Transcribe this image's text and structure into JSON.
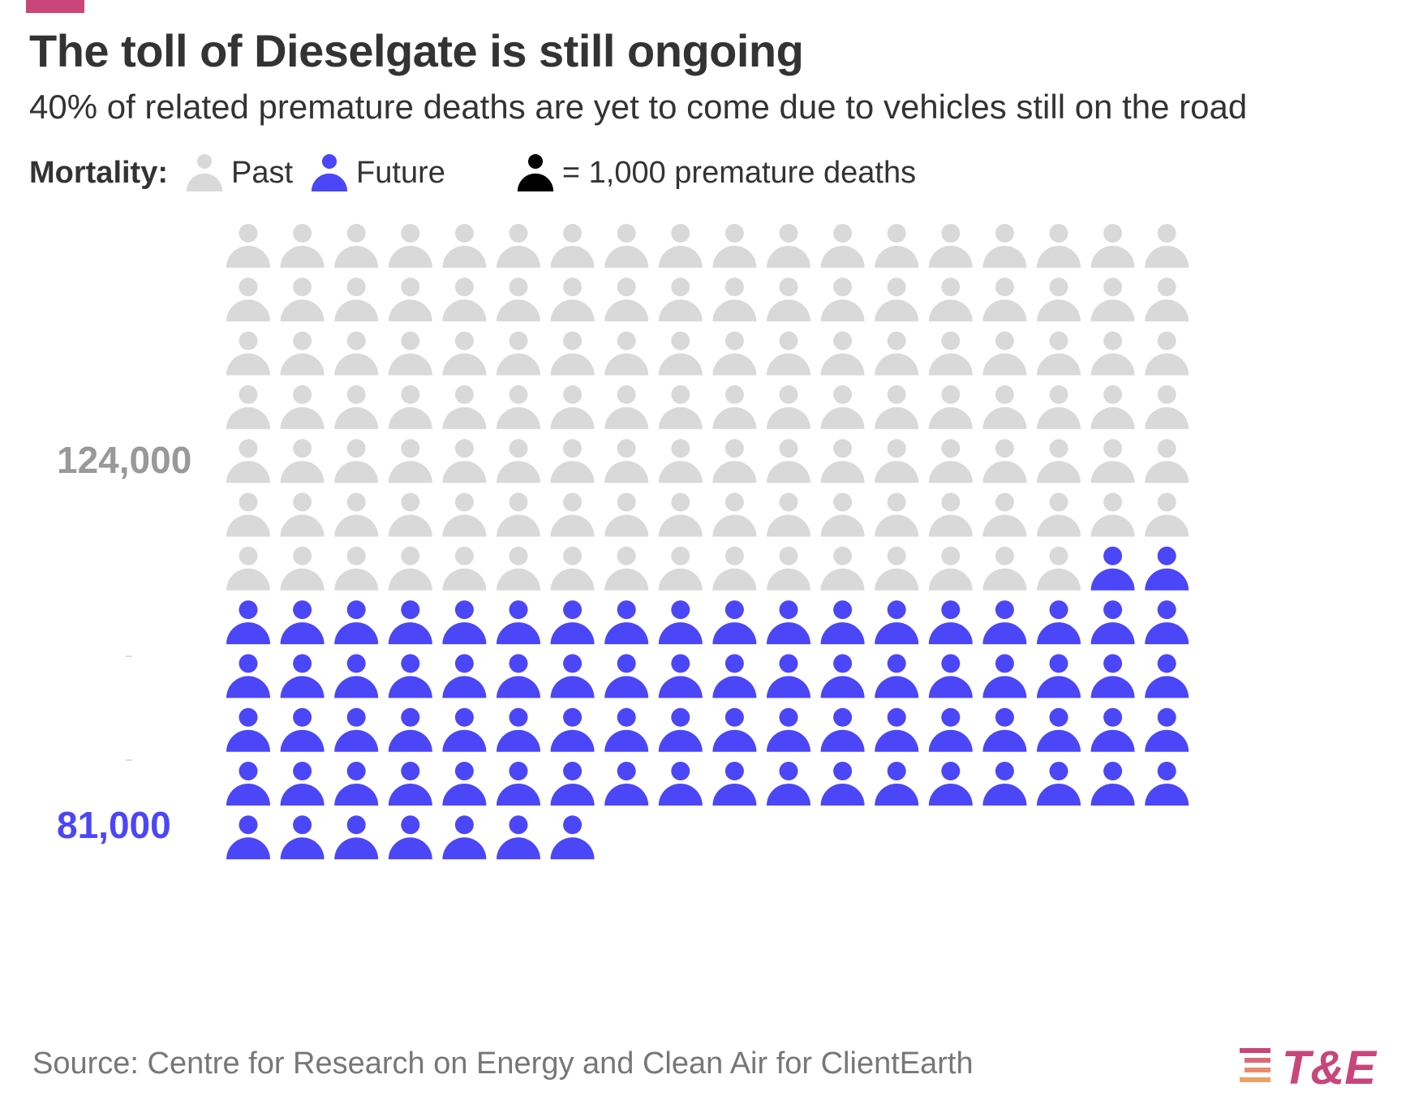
{
  "title": "The toll of Dieselgate is still ongoing",
  "subtitle": "40% of related premature deaths are yet to come due to vehicles still on the road",
  "legend": {
    "title": "Mortality:",
    "past_label": "Past",
    "future_label": "Future",
    "scale_label": "= 1,000 premature deaths"
  },
  "labels": {
    "past_total": "124,000",
    "future_total": "81,000"
  },
  "source": "Source: Centre for Research on Energy and Clean Air for ClientEarth",
  "logo_text": "T&E",
  "colors": {
    "past": "#d9d9d9",
    "future": "#4b46f8",
    "scale_icon": "#000000",
    "past_label": "#999999",
    "future_label": "#4b46f8",
    "accent": "#c8467a"
  },
  "chart_data": {
    "type": "waffle",
    "unit": "1,000 premature deaths",
    "icon": "person-icon",
    "columns": 18,
    "series": [
      {
        "name": "Past",
        "value": 124,
        "color": "#d9d9d9"
      },
      {
        "name": "Future",
        "value": 81,
        "color": "#4b46f8"
      }
    ],
    "value_labels": [
      "124,000",
      "81,000"
    ]
  }
}
